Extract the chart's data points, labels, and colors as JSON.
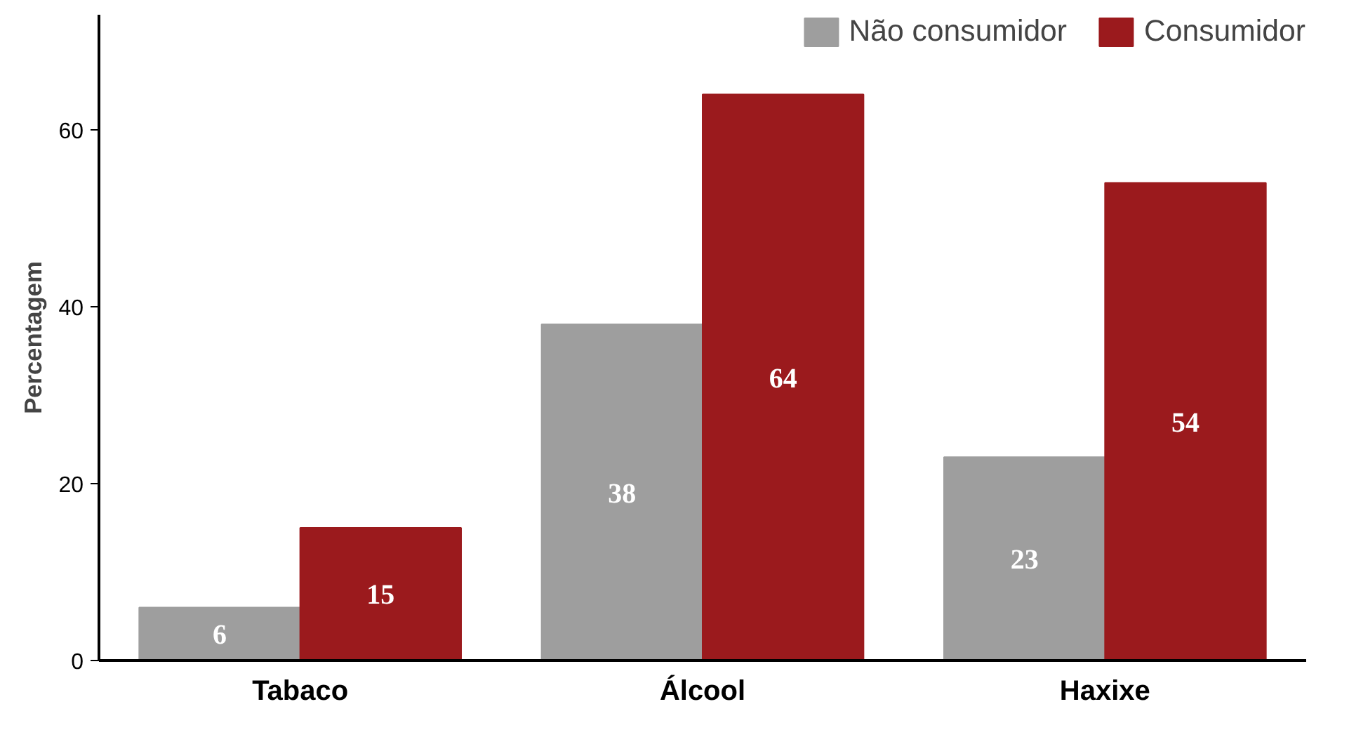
{
  "chart_data": {
    "type": "bar",
    "ylabel": "Percentagem",
    "categories": [
      "Tabaco",
      "Álcool",
      "Haxixe"
    ],
    "series": [
      {
        "name": "Não consumidor",
        "color": "#9e9e9e",
        "values": [
          6,
          38,
          23
        ]
      },
      {
        "name": "Consumidor",
        "color": "#9b1a1d",
        "values": [
          15,
          64,
          54
        ]
      }
    ],
    "ylim": [
      0,
      73
    ],
    "yticks": [
      0,
      20,
      40,
      60
    ],
    "data_labels": true,
    "legend": "top right",
    "grid": false
  }
}
